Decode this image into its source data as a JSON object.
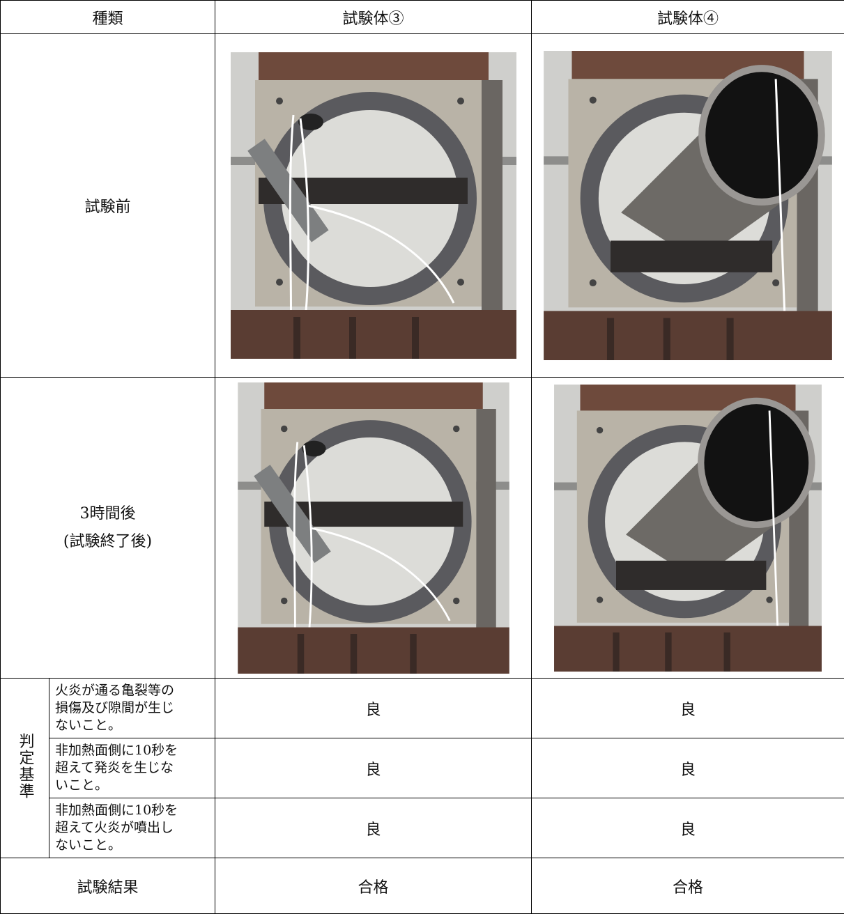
{
  "table": {
    "header": [
      "種類",
      "試験体③",
      "試験体④"
    ],
    "before_label": "試験前",
    "after_label": [
      "3時間後",
      "(試験終了後)"
    ],
    "criteria_label": "判定基準",
    "criteria": [
      {
        "text": [
          "火炎が通る亀裂等の",
          "損傷及び隙間が生じ",
          "ないこと。"
        ],
        "results": [
          "良",
          "良"
        ]
      },
      {
        "text": [
          "非加熱面側に10秒を",
          "超えて発炎を生じな",
          "いこと。"
        ],
        "results": [
          "良",
          "良"
        ]
      },
      {
        "text": [
          "非加熱面側に10秒を",
          "超えて火炎が噴出し",
          "ないこと。"
        ],
        "results": [
          "良",
          "良"
        ]
      }
    ],
    "result_label": "試験結果",
    "results": [
      "合格",
      "合格"
    ]
  }
}
